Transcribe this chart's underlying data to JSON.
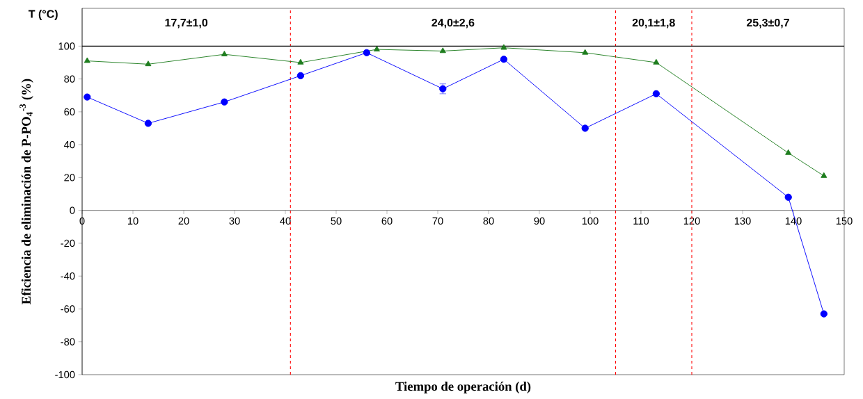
{
  "chart_data": {
    "type": "line",
    "xlabel": "Tiempo de operación (d)",
    "ylabel": "Eficiencia de eliminación de P-PO$_{4}$$^{-3}$ (%)",
    "xlim": [
      0,
      150
    ],
    "xticks": [
      0,
      10,
      20,
      30,
      40,
      50,
      60,
      70,
      80,
      90,
      100,
      110,
      120,
      130,
      140,
      150
    ],
    "ylim": [
      -100,
      123
    ],
    "yticks": [
      -100,
      -80,
      -60,
      -40,
      -20,
      0,
      20,
      40,
      60,
      80,
      100
    ],
    "series": [
      {
        "color": "#0000ff",
        "marker": "circle",
        "line_style": "solid",
        "x": [
          1,
          13,
          28,
          43,
          56,
          71,
          83,
          99,
          113,
          139,
          146
        ],
        "values": [
          69,
          53,
          66,
          82,
          96,
          74,
          92,
          50,
          71,
          8,
          -63
        ],
        "errors": [
          null,
          null,
          null,
          null,
          null,
          3,
          null,
          null,
          null,
          null,
          null
        ]
      },
      {
        "color": "#1e7d1e",
        "marker": "triangle",
        "line_style": "solid",
        "x": [
          1,
          13,
          28,
          43,
          58,
          71,
          83,
          99,
          113,
          139,
          146
        ],
        "values": [
          91,
          89,
          95,
          90,
          98,
          97,
          99,
          96,
          90,
          35,
          21
        ]
      }
    ],
    "ref_lines": [
      {
        "axis": "x",
        "value": 41,
        "color": "#ff0000",
        "line_style": "dashed"
      },
      {
        "axis": "x",
        "value": 105,
        "color": "#ff0000",
        "line_style": "dashed"
      },
      {
        "axis": "x",
        "value": 120,
        "color": "#ff0000",
        "line_style": "dashed"
      },
      {
        "axis": "y",
        "value": 100,
        "color": "#000000",
        "line_style": "solid"
      }
    ],
    "annotations": [
      "T (°C)",
      "17,7±1,0",
      "24,0±2,6",
      "20,1±1,8",
      "25,3±0,7"
    ]
  }
}
